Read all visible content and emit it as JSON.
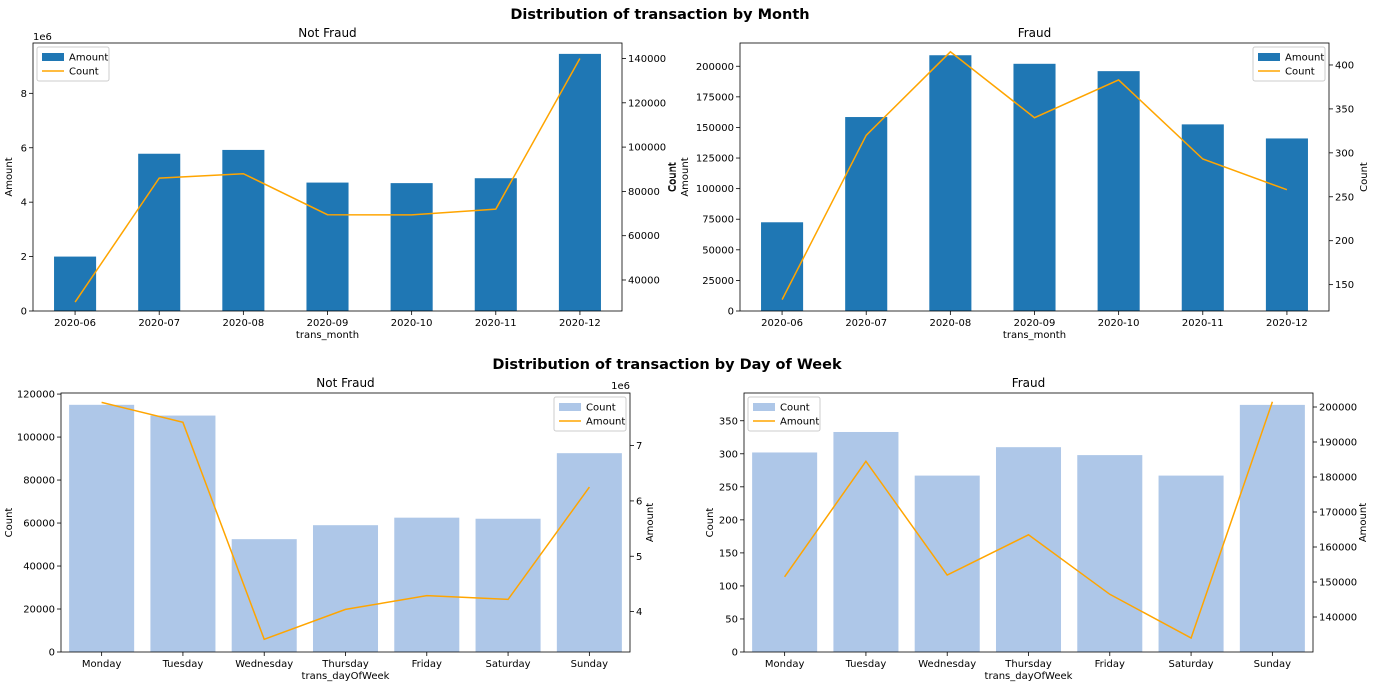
{
  "suptitles": {
    "month": "Distribution of transaction by Month",
    "dow": "Distribution of transaction by Day of Week"
  },
  "colors": {
    "amount_bar": "#1f77b4",
    "count_line": "#ffa500",
    "count_bar": "#aec7e8",
    "amount_line": "#ffa500"
  },
  "chart_data": [
    {
      "id": "month_notfraud",
      "type": "bar",
      "title": "Not Fraud",
      "xlabel": "trans_month",
      "categories": [
        "2020-06",
        "2020-07",
        "2020-08",
        "2020-09",
        "2020-10",
        "2020-11",
        "2020-12"
      ],
      "left": {
        "label": "Amount",
        "kind": "bar",
        "name": "Amount",
        "exponent": "1e6",
        "values": [
          2.0,
          5.78,
          5.92,
          4.72,
          4.7,
          4.88,
          9.45
        ],
        "ylim": [
          0,
          9.85
        ],
        "ticks": [
          0,
          2,
          4,
          6,
          8
        ],
        "tick_labels": [
          "0",
          "2",
          "4",
          "6",
          "8"
        ]
      },
      "right": {
        "label": "Count",
        "kind": "line",
        "name": "Count",
        "values": [
          30000,
          86000,
          88000,
          69500,
          69400,
          72000,
          140000
        ],
        "ylim": [
          26000,
          147000
        ],
        "ticks": [
          40000,
          60000,
          80000,
          100000,
          120000,
          140000
        ],
        "tick_labels": [
          "40000",
          "60000",
          "80000",
          "100000",
          "120000",
          "140000"
        ]
      },
      "legend": [
        {
          "label": "Amount",
          "kind": "bar"
        },
        {
          "label": "Count",
          "kind": "line"
        }
      ],
      "legend_loc": "upper-left"
    },
    {
      "id": "month_fraud",
      "type": "bar",
      "title": "Fraud",
      "xlabel": "trans_month",
      "categories": [
        "2020-06",
        "2020-07",
        "2020-08",
        "2020-09",
        "2020-10",
        "2020-11",
        "2020-12"
      ],
      "left": {
        "label": "Count\nAmount",
        "label_lines": [
          "Count",
          "Amount"
        ],
        "kind": "bar",
        "name": "Amount",
        "values": [
          72500,
          158500,
          209000,
          202000,
          196000,
          152500,
          141000
        ],
        "ylim": [
          0,
          219000
        ],
        "ticks": [
          0,
          25000,
          50000,
          75000,
          100000,
          125000,
          150000,
          175000,
          200000
        ],
        "tick_labels": [
          "0",
          "25000",
          "50000",
          "75000",
          "100000",
          "125000",
          "150000",
          "175000",
          "200000"
        ]
      },
      "right": {
        "label": "Count",
        "kind": "line",
        "name": "Count",
        "values": [
          133,
          320,
          415,
          340,
          383,
          293,
          258
        ],
        "ylim": [
          120,
          425
        ],
        "ticks": [
          150,
          200,
          250,
          300,
          350,
          400
        ],
        "tick_labels": [
          "150",
          "200",
          "250",
          "300",
          "350",
          "400"
        ]
      },
      "legend": [
        {
          "label": "Amount",
          "kind": "bar"
        },
        {
          "label": "Count",
          "kind": "line"
        }
      ],
      "legend_loc": "upper-right"
    },
    {
      "id": "dow_notfraud",
      "type": "bar",
      "title": "Not Fraud",
      "xlabel": "trans_dayOfWeek",
      "categories": [
        "Monday",
        "Tuesday",
        "Wednesday",
        "Thursday",
        "Friday",
        "Saturday",
        "Sunday"
      ],
      "left": {
        "label": "Count",
        "kind": "bar",
        "name": "Count",
        "values": [
          115000,
          110000,
          52500,
          59000,
          62500,
          62000,
          92500
        ],
        "ylim": [
          0,
          120500
        ],
        "ticks": [
          0,
          20000,
          40000,
          60000,
          80000,
          100000,
          120000
        ],
        "tick_labels": [
          "0",
          "20000",
          "40000",
          "60000",
          "80000",
          "100000",
          "120000"
        ]
      },
      "right": {
        "label": "Amount",
        "kind": "line",
        "name": "Amount",
        "exponent": "1e6",
        "values": [
          7.78,
          7.42,
          3.5,
          4.04,
          4.29,
          4.22,
          6.25
        ],
        "ylim": [
          3.27,
          7.95
        ],
        "ticks": [
          4,
          5,
          6,
          7
        ],
        "tick_labels": [
          "4",
          "5",
          "6",
          "7"
        ]
      },
      "legend": [
        {
          "label": "Count",
          "kind": "bar"
        },
        {
          "label": "Amount",
          "kind": "line"
        }
      ],
      "legend_loc": "upper-right"
    },
    {
      "id": "dow_fraud",
      "type": "bar",
      "title": "Fraud",
      "xlabel": "trans_dayOfWeek",
      "categories": [
        "Monday",
        "Tuesday",
        "Wednesday",
        "Thursday",
        "Friday",
        "Saturday",
        "Sunday"
      ],
      "left": {
        "label": "Count",
        "kind": "bar",
        "name": "Count",
        "values": [
          302,
          333,
          267,
          310,
          298,
          267,
          374
        ],
        "ylim": [
          0,
          392
        ],
        "ticks": [
          0,
          50,
          100,
          150,
          200,
          250,
          300,
          350
        ],
        "tick_labels": [
          "0",
          "50",
          "100",
          "150",
          "200",
          "250",
          "300",
          "350"
        ]
      },
      "right": {
        "label": "Amount",
        "kind": "line",
        "name": "Amount",
        "values": [
          151500,
          184500,
          152000,
          163500,
          146500,
          134000,
          201500
        ],
        "ylim": [
          130000,
          204000
        ],
        "ticks": [
          140000,
          150000,
          160000,
          170000,
          180000,
          190000,
          200000
        ],
        "tick_labels": [
          "140000",
          "150000",
          "160000",
          "170000",
          "180000",
          "190000",
          "200000"
        ]
      },
      "legend": [
        {
          "label": "Count",
          "kind": "bar"
        },
        {
          "label": "Amount",
          "kind": "line"
        }
      ],
      "legend_loc": "upper-left"
    }
  ]
}
